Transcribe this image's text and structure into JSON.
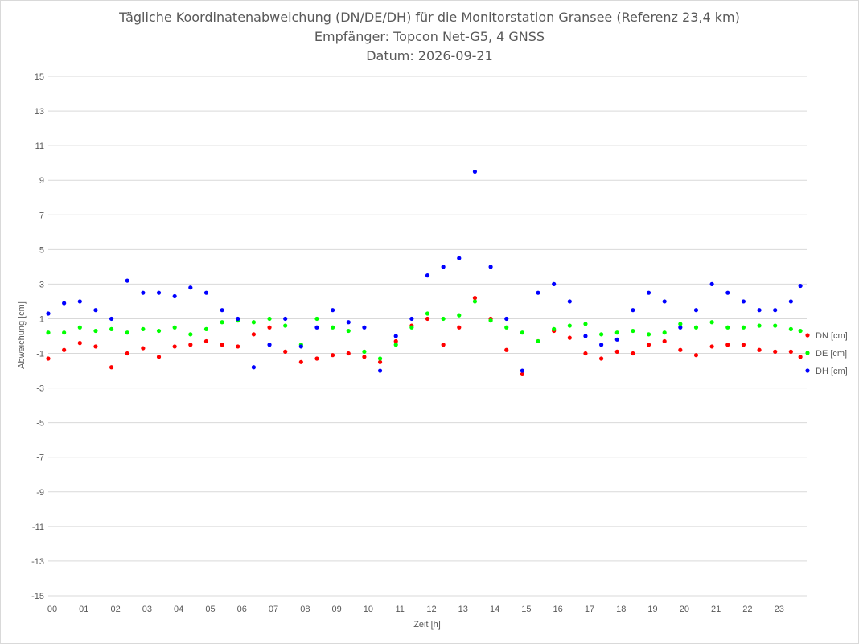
{
  "chart_data": {
    "type": "scatter",
    "title": "Tägliche Koordinatenabweichung (DN/DE/DH) für die Monitorstation Gransee (Referenz 23,4 km)",
    "subtitle": "Empfänger: Topcon Net-G5, 4 GNSS",
    "date_line": "Datum: 2026-09-21",
    "xlabel": "Zeit [h]",
    "ylabel": "Abweichung [cm]",
    "xlim": [
      0,
      24
    ],
    "ylim": [
      -15,
      15
    ],
    "y_ticks": [
      15,
      13,
      11,
      9,
      7,
      5,
      3,
      1,
      -1,
      -3,
      -5,
      -7,
      -9,
      -11,
      -13,
      -15
    ],
    "y_tick_labels": [
      "15",
      "13",
      "11",
      "9",
      "7",
      "5",
      "3",
      "1",
      "-1",
      "-3",
      "-5",
      "-7",
      "-9",
      "-11",
      "-13",
      "-15"
    ],
    "x_ticks": [
      0,
      1,
      2,
      3,
      4,
      5,
      6,
      7,
      8,
      9,
      10,
      11,
      12,
      13,
      14,
      15,
      16,
      17,
      18,
      19,
      20,
      21,
      22,
      23
    ],
    "x_tick_labels": [
      "00",
      "01",
      "02",
      "03",
      "04",
      "05",
      "06",
      "07",
      "08",
      "09",
      "10",
      "11",
      "12",
      "13",
      "14",
      "15",
      "16",
      "17",
      "18",
      "19",
      "20",
      "21",
      "22",
      "23"
    ],
    "grid": true,
    "legend_position": "right",
    "series": [
      {
        "name": "DN [cm]",
        "color": "#ff0000",
        "x": [
          0.0,
          0.5,
          1.0,
          1.5,
          2.0,
          2.5,
          3.0,
          3.5,
          4.0,
          4.5,
          5.0,
          5.5,
          6.0,
          6.5,
          7.0,
          7.5,
          8.0,
          8.5,
          9.0,
          9.5,
          10.0,
          10.5,
          11.0,
          11.5,
          12.0,
          12.5,
          13.0,
          13.5,
          14.0,
          14.5,
          15.0,
          15.5,
          16.0,
          16.5,
          17.0,
          17.5,
          18.0,
          18.5,
          19.0,
          19.5,
          20.0,
          20.5,
          21.0,
          21.5,
          22.0,
          22.5,
          23.0,
          23.5,
          23.8
        ],
        "y": [
          -1.3,
          -0.8,
          -0.4,
          -0.6,
          -1.8,
          -1.0,
          -0.7,
          -1.2,
          -0.6,
          -0.5,
          -0.3,
          -0.5,
          -0.6,
          0.1,
          0.5,
          -0.9,
          -1.5,
          -1.3,
          -1.1,
          -1.0,
          -1.2,
          -1.5,
          -0.3,
          0.6,
          1.0,
          -0.5,
          0.5,
          2.2,
          1.0,
          -0.8,
          -2.2,
          -0.3,
          0.3,
          -0.1,
          -1.0,
          -1.3,
          -0.9,
          -1.0,
          -0.5,
          -0.3,
          -0.8,
          -1.1,
          -0.6,
          -0.5,
          -0.5,
          -0.8,
          -0.9,
          -0.9,
          -1.2
        ]
      },
      {
        "name": "DE [cm]",
        "color": "#00ff00",
        "x": [
          0.0,
          0.5,
          1.0,
          1.5,
          2.0,
          2.5,
          3.0,
          3.5,
          4.0,
          4.5,
          5.0,
          5.5,
          6.0,
          6.5,
          7.0,
          7.5,
          8.0,
          8.5,
          9.0,
          9.5,
          10.0,
          10.5,
          11.0,
          11.5,
          12.0,
          12.5,
          13.0,
          13.5,
          14.0,
          14.5,
          15.0,
          15.5,
          16.0,
          16.5,
          17.0,
          17.5,
          18.0,
          18.5,
          19.0,
          19.5,
          20.0,
          20.5,
          21.0,
          21.5,
          22.0,
          22.5,
          23.0,
          23.5,
          23.8
        ],
        "y": [
          0.2,
          0.2,
          0.5,
          0.3,
          0.4,
          0.2,
          0.4,
          0.3,
          0.5,
          0.1,
          0.4,
          0.8,
          0.9,
          0.8,
          1.0,
          0.6,
          -0.5,
          1.0,
          0.5,
          0.3,
          -0.9,
          -1.3,
          -0.5,
          0.5,
          1.3,
          1.0,
          1.2,
          2.0,
          0.9,
          0.5,
          0.2,
          -0.3,
          0.4,
          0.6,
          0.7,
          0.1,
          0.2,
          0.3,
          0.1,
          0.2,
          0.7,
          0.5,
          0.8,
          0.5,
          0.5,
          0.6,
          0.6,
          0.4,
          0.3
        ]
      },
      {
        "name": "DH [cm]",
        "color": "#0000ff",
        "x": [
          0.0,
          0.5,
          1.0,
          1.5,
          2.0,
          2.5,
          3.0,
          3.5,
          4.0,
          4.5,
          5.0,
          5.5,
          6.0,
          6.5,
          7.0,
          7.5,
          8.0,
          8.5,
          9.0,
          9.5,
          10.0,
          10.5,
          11.0,
          11.5,
          12.0,
          12.5,
          13.0,
          13.5,
          14.0,
          14.5,
          15.0,
          15.5,
          16.0,
          16.5,
          17.0,
          17.5,
          18.0,
          18.5,
          19.0,
          19.5,
          20.0,
          20.5,
          21.0,
          21.5,
          22.0,
          22.5,
          23.0,
          23.5,
          23.8
        ],
        "y": [
          1.3,
          1.9,
          2.0,
          1.5,
          1.0,
          3.2,
          2.5,
          2.5,
          2.3,
          2.8,
          2.5,
          1.5,
          1.0,
          -1.8,
          -0.5,
          1.0,
          -0.6,
          0.5,
          1.5,
          0.8,
          0.5,
          -2.0,
          0.0,
          1.0,
          3.5,
          4.0,
          4.5,
          9.5,
          4.0,
          1.0,
          -2.0,
          2.5,
          3.0,
          2.0,
          0.0,
          -0.5,
          -0.2,
          1.5,
          2.5,
          2.0,
          0.5,
          1.5,
          3.0,
          2.5,
          2.0,
          1.5,
          1.5,
          2.0,
          2.9
        ]
      }
    ]
  }
}
